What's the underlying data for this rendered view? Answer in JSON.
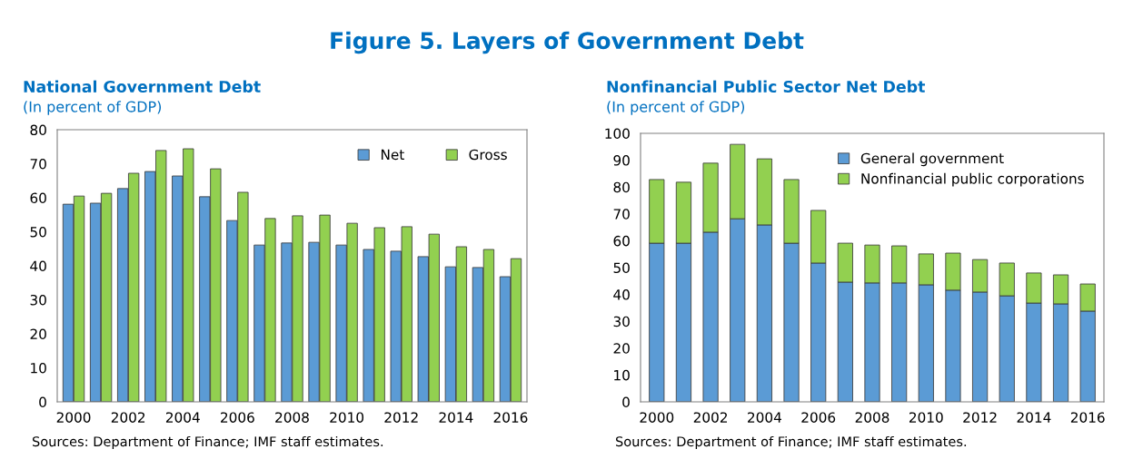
{
  "chart_data": [
    {
      "type": "other",
      "title": "Figure 5. Layers of Government Debt"
    },
    {
      "type": "bar",
      "title": "National Government Debt",
      "subtitle": "(In percent of GDP)",
      "categories": [
        "2000",
        null,
        "2002",
        null,
        "2004",
        null,
        "2006",
        null,
        "2008",
        null,
        "2010",
        null,
        "2012",
        null,
        "2014",
        null,
        "2016"
      ],
      "series": [
        {
          "name": "Net",
          "color": "#5b9bd5",
          "values": [
            58.1,
            58.4,
            62.7,
            67.7,
            66.4,
            60.3,
            53.3,
            46.1,
            46.7,
            46.9,
            46.1,
            44.8,
            44.3,
            42.7,
            39.7,
            39.5,
            36.8
          ]
        },
        {
          "name": "Gross",
          "color": "#92d050",
          "values": [
            60.5,
            61.3,
            67.2,
            73.9,
            74.4,
            68.5,
            61.6,
            53.9,
            54.7,
            54.9,
            52.5,
            51.2,
            51.5,
            49.3,
            45.6,
            44.8,
            42.1
          ]
        }
      ],
      "ylim": [
        0,
        80
      ],
      "yticks": [
        0,
        10,
        20,
        30,
        40,
        50,
        60,
        70,
        80
      ],
      "grid": false,
      "legend": "top right",
      "annotations": [
        "Sources: Department of Finance; IMF staff estimates."
      ]
    },
    {
      "type": "bar",
      "title": "Nonfinancial Public Sector Net Debt",
      "subtitle": "(In percent of GDP)",
      "stacked": true,
      "categories": [
        "2000",
        null,
        "2002",
        null,
        "2004",
        null,
        "2006",
        null,
        "2008",
        null,
        "2010",
        null,
        "2012",
        null,
        "2014",
        null,
        "2016"
      ],
      "series": [
        {
          "name": "General government",
          "color": "#5b9bd5",
          "values": [
            59.1,
            59.1,
            63.2,
            68.2,
            65.9,
            59.1,
            51.7,
            44.6,
            44.3,
            44.3,
            43.6,
            41.6,
            40.9,
            39.5,
            36.8,
            36.5,
            33.8
          ]
        },
        {
          "name": "Nonfinancial public corporations",
          "color": "#92d050",
          "values": [
            23.7,
            22.7,
            25.7,
            27.7,
            24.6,
            23.7,
            19.6,
            14.5,
            14.1,
            13.8,
            11.5,
            13.8,
            12.1,
            12.2,
            11.2,
            10.8,
            10.1
          ]
        }
      ],
      "ylim": [
        0,
        100
      ],
      "yticks": [
        0,
        10,
        20,
        30,
        40,
        50,
        60,
        70,
        80,
        90,
        100
      ],
      "grid": false,
      "legend": "top right",
      "annotations": [
        "Sources: Department of Finance; IMF staff estimates."
      ]
    }
  ]
}
